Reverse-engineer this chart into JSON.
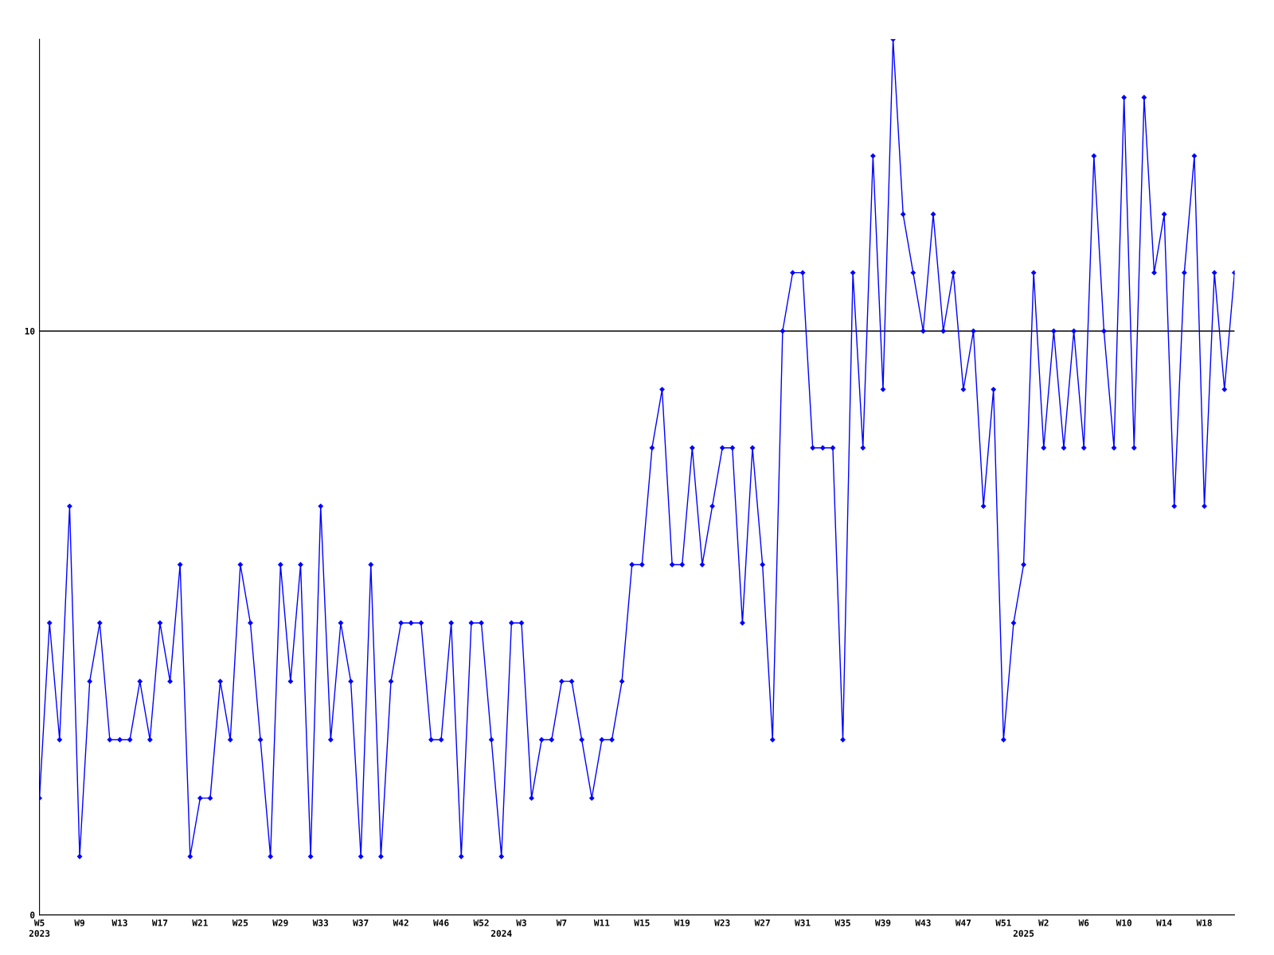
{
  "chart_data": {
    "type": "line",
    "categories": [
      "W5\n2023",
      null,
      null,
      null,
      "W9",
      null,
      null,
      null,
      "W13",
      null,
      null,
      null,
      "W17",
      null,
      null,
      null,
      "W21",
      null,
      null,
      null,
      "W25",
      null,
      null,
      null,
      "W29",
      null,
      null,
      null,
      "W33",
      null,
      null,
      null,
      "W37",
      null,
      null,
      null,
      "W42",
      null,
      null,
      null,
      "W46",
      null,
      null,
      null,
      "W52",
      null,
      "\n2024",
      null,
      "W3",
      null,
      null,
      null,
      "W7",
      null,
      null,
      null,
      "W11",
      null,
      null,
      null,
      "W15",
      null,
      null,
      null,
      "W19",
      null,
      null,
      null,
      "W23",
      null,
      null,
      null,
      "W27",
      null,
      null,
      null,
      "W31",
      null,
      null,
      null,
      "W35",
      null,
      null,
      null,
      "W39",
      null,
      null,
      null,
      "W43",
      null,
      null,
      null,
      "W47",
      null,
      null,
      null,
      "W51",
      null,
      "\n2025",
      null,
      "W2",
      null,
      null,
      null,
      "W6",
      null,
      null,
      null,
      "W10",
      null,
      null,
      null,
      "W14",
      null,
      null,
      null,
      "W18",
      null,
      null,
      null
    ],
    "series": [
      {
        "color": "#0000ff",
        "values": [
          2,
          5,
          3,
          7,
          1,
          4,
          5,
          3,
          3,
          3,
          4,
          3,
          5,
          4,
          6,
          1,
          2,
          2,
          4,
          3,
          6,
          5,
          3,
          1,
          6,
          4,
          6,
          1,
          7,
          3,
          5,
          4,
          1,
          6,
          1,
          4,
          5,
          5,
          5,
          3,
          3,
          5,
          1,
          5,
          5,
          3,
          1,
          5,
          5,
          2,
          3,
          3,
          4,
          4,
          3,
          2,
          3,
          3,
          4,
          6,
          6,
          8,
          9,
          6,
          6,
          8,
          6,
          7,
          8,
          8,
          5,
          8,
          6,
          3,
          10,
          11,
          11,
          8,
          8,
          8,
          3,
          11,
          8,
          13,
          9,
          15,
          12,
          11,
          10,
          12,
          10,
          11,
          9,
          10,
          7,
          9,
          3,
          5,
          6,
          11,
          8,
          10,
          8,
          10,
          8,
          13,
          10,
          8,
          14,
          8,
          14,
          11,
          12,
          7,
          11,
          13,
          7,
          11,
          9,
          11
        ]
      }
    ],
    "ylim": [
      0,
      15
    ],
    "yticks": [
      0,
      10
    ],
    "grid": "y",
    "marker": "diamond",
    "line_style": "solid"
  }
}
